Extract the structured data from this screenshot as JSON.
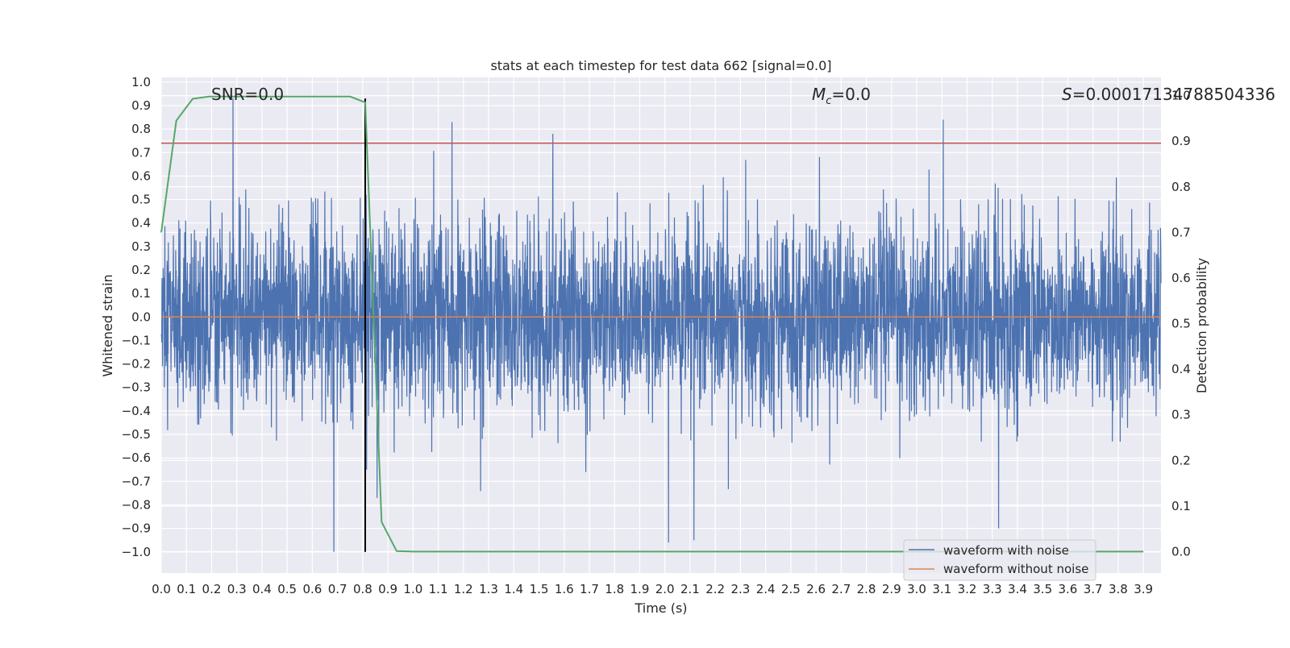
{
  "chart_data": {
    "type": "line",
    "title": "stats at each timestep for test data 662 [signal=0.0]",
    "xlabel": "Time (s)",
    "ylabel": "Whitened strain",
    "y2label": "Detection probability",
    "xlim": [
      0.0,
      3.97
    ],
    "ylim": [
      -1.09,
      1.02
    ],
    "y2lim": [
      -0.047,
      1.04
    ],
    "x_ticks": [
      0.0,
      0.1,
      0.2,
      0.3,
      0.4,
      0.5,
      0.6,
      0.7,
      0.8,
      0.9,
      1.0,
      1.1,
      1.2,
      1.3,
      1.4,
      1.5,
      1.6,
      1.7,
      1.8,
      1.9,
      2.0,
      2.1,
      2.2,
      2.3,
      2.4,
      2.5,
      2.6,
      2.7,
      2.8,
      2.9,
      3.0,
      3.1,
      3.2,
      3.3,
      3.4,
      3.5,
      3.6,
      3.7,
      3.8,
      3.9
    ],
    "x_tick_labels": [
      "0.0",
      "0.1",
      "0.2",
      "0.3",
      "0.4",
      "0.5",
      "0.6",
      "0.7",
      "0.8",
      "0.9",
      "1.0",
      "1.1",
      "1.2",
      "1.3",
      "1.4",
      "1.5",
      "1.6",
      "1.7",
      "1.8",
      "1.9",
      "2.0",
      "2.1",
      "2.2",
      "2.3",
      "2.4",
      "2.5",
      "2.6",
      "2.7",
      "2.8",
      "2.9",
      "3.0",
      "3.1",
      "3.2",
      "3.3",
      "3.4",
      "3.5",
      "3.6",
      "3.7",
      "3.8",
      "3.9"
    ],
    "y_ticks": [
      1.0,
      0.9,
      0.8,
      0.7,
      0.6,
      0.5,
      0.4,
      0.3,
      0.2,
      0.1,
      0.0,
      -0.1,
      -0.2,
      -0.3,
      -0.4,
      -0.5,
      -0.6,
      -0.7,
      -0.8,
      -0.9,
      -1.0
    ],
    "y_tick_labels": [
      "1.0",
      "0.9",
      "0.8",
      "0.7",
      "0.6",
      "0.5",
      "0.4",
      "0.3",
      "0.2",
      "0.1",
      "0.0",
      "−0.1",
      "−0.2",
      "−0.3",
      "−0.4",
      "−0.5",
      "−0.6",
      "−0.7",
      "−0.8",
      "−0.9",
      "−1.0"
    ],
    "y2_ticks": [
      1.0,
      0.9,
      0.8,
      0.7,
      0.6,
      0.5,
      0.4,
      0.3,
      0.2,
      0.1,
      0.0
    ],
    "y2_tick_labels": [
      "1.0",
      "0.9",
      "0.8",
      "0.7",
      "0.6",
      "0.5",
      "0.4",
      "0.3",
      "0.2",
      "0.1",
      "0.0"
    ],
    "grid": true,
    "legend_position": "bottom-right",
    "series": [
      {
        "name": "waveform with noise",
        "axis": "left",
        "color": "#4c72b0",
        "description": "dense whitened strain noise, amplitude mostly within ±0.5 with spikes near ±0.93 and −1.0",
        "n_points": 4096,
        "spikes": [
          [
            0.285,
            0.93
          ],
          [
            0.685,
            -1.0
          ],
          [
            1.155,
            0.83
          ],
          [
            1.555,
            0.78
          ],
          [
            2.015,
            -0.96
          ],
          [
            2.115,
            -0.95
          ],
          [
            3.105,
            0.84
          ],
          [
            3.325,
            -0.9
          ],
          [
            0.815,
            -0.65
          ]
        ]
      },
      {
        "name": "waveform without noise",
        "axis": "left",
        "color": "#dd8452",
        "x": [
          0.0,
          3.97
        ],
        "y": [
          0.0,
          0.0
        ]
      },
      {
        "name": "detection probability",
        "axis": "right",
        "color": "#55a868",
        "x": [
          0.0,
          0.06,
          0.125,
          0.19,
          0.25,
          0.31,
          0.375,
          0.44,
          0.5,
          0.56,
          0.625,
          0.69,
          0.75,
          0.81,
          0.875,
          0.935,
          1.0,
          1.5,
          2.0,
          2.5,
          3.0,
          3.5,
          3.9
        ],
        "y": [
          0.7,
          0.945,
          0.993,
          0.998,
          0.998,
          0.998,
          0.998,
          0.998,
          0.998,
          0.998,
          0.998,
          0.998,
          0.998,
          0.985,
          0.065,
          0.001,
          0.0,
          0.0,
          0.0,
          0.0,
          0.0,
          0.0,
          0.0
        ]
      }
    ],
    "hlines": [
      {
        "axis": "left",
        "y": 0.74,
        "color": "#c44e52",
        "name": "threshold"
      }
    ],
    "vlines": [
      {
        "axis": "left",
        "x": 0.81,
        "ymin": -1.0,
        "ymax": 0.93,
        "color": "#000000",
        "name": "marker"
      }
    ],
    "annotations": [
      {
        "text": "SNR=0.0",
        "x": 0.2,
        "y": 0.94
      },
      {
        "text": "=0.0",
        "math_prefix": "M",
        "math_sub": "c",
        "x": 2.6,
        "y": 0.94
      },
      {
        "text": "=0.00017134788504336",
        "math_prefix": "S",
        "x": 3.6,
        "y": 0.94
      }
    ]
  }
}
